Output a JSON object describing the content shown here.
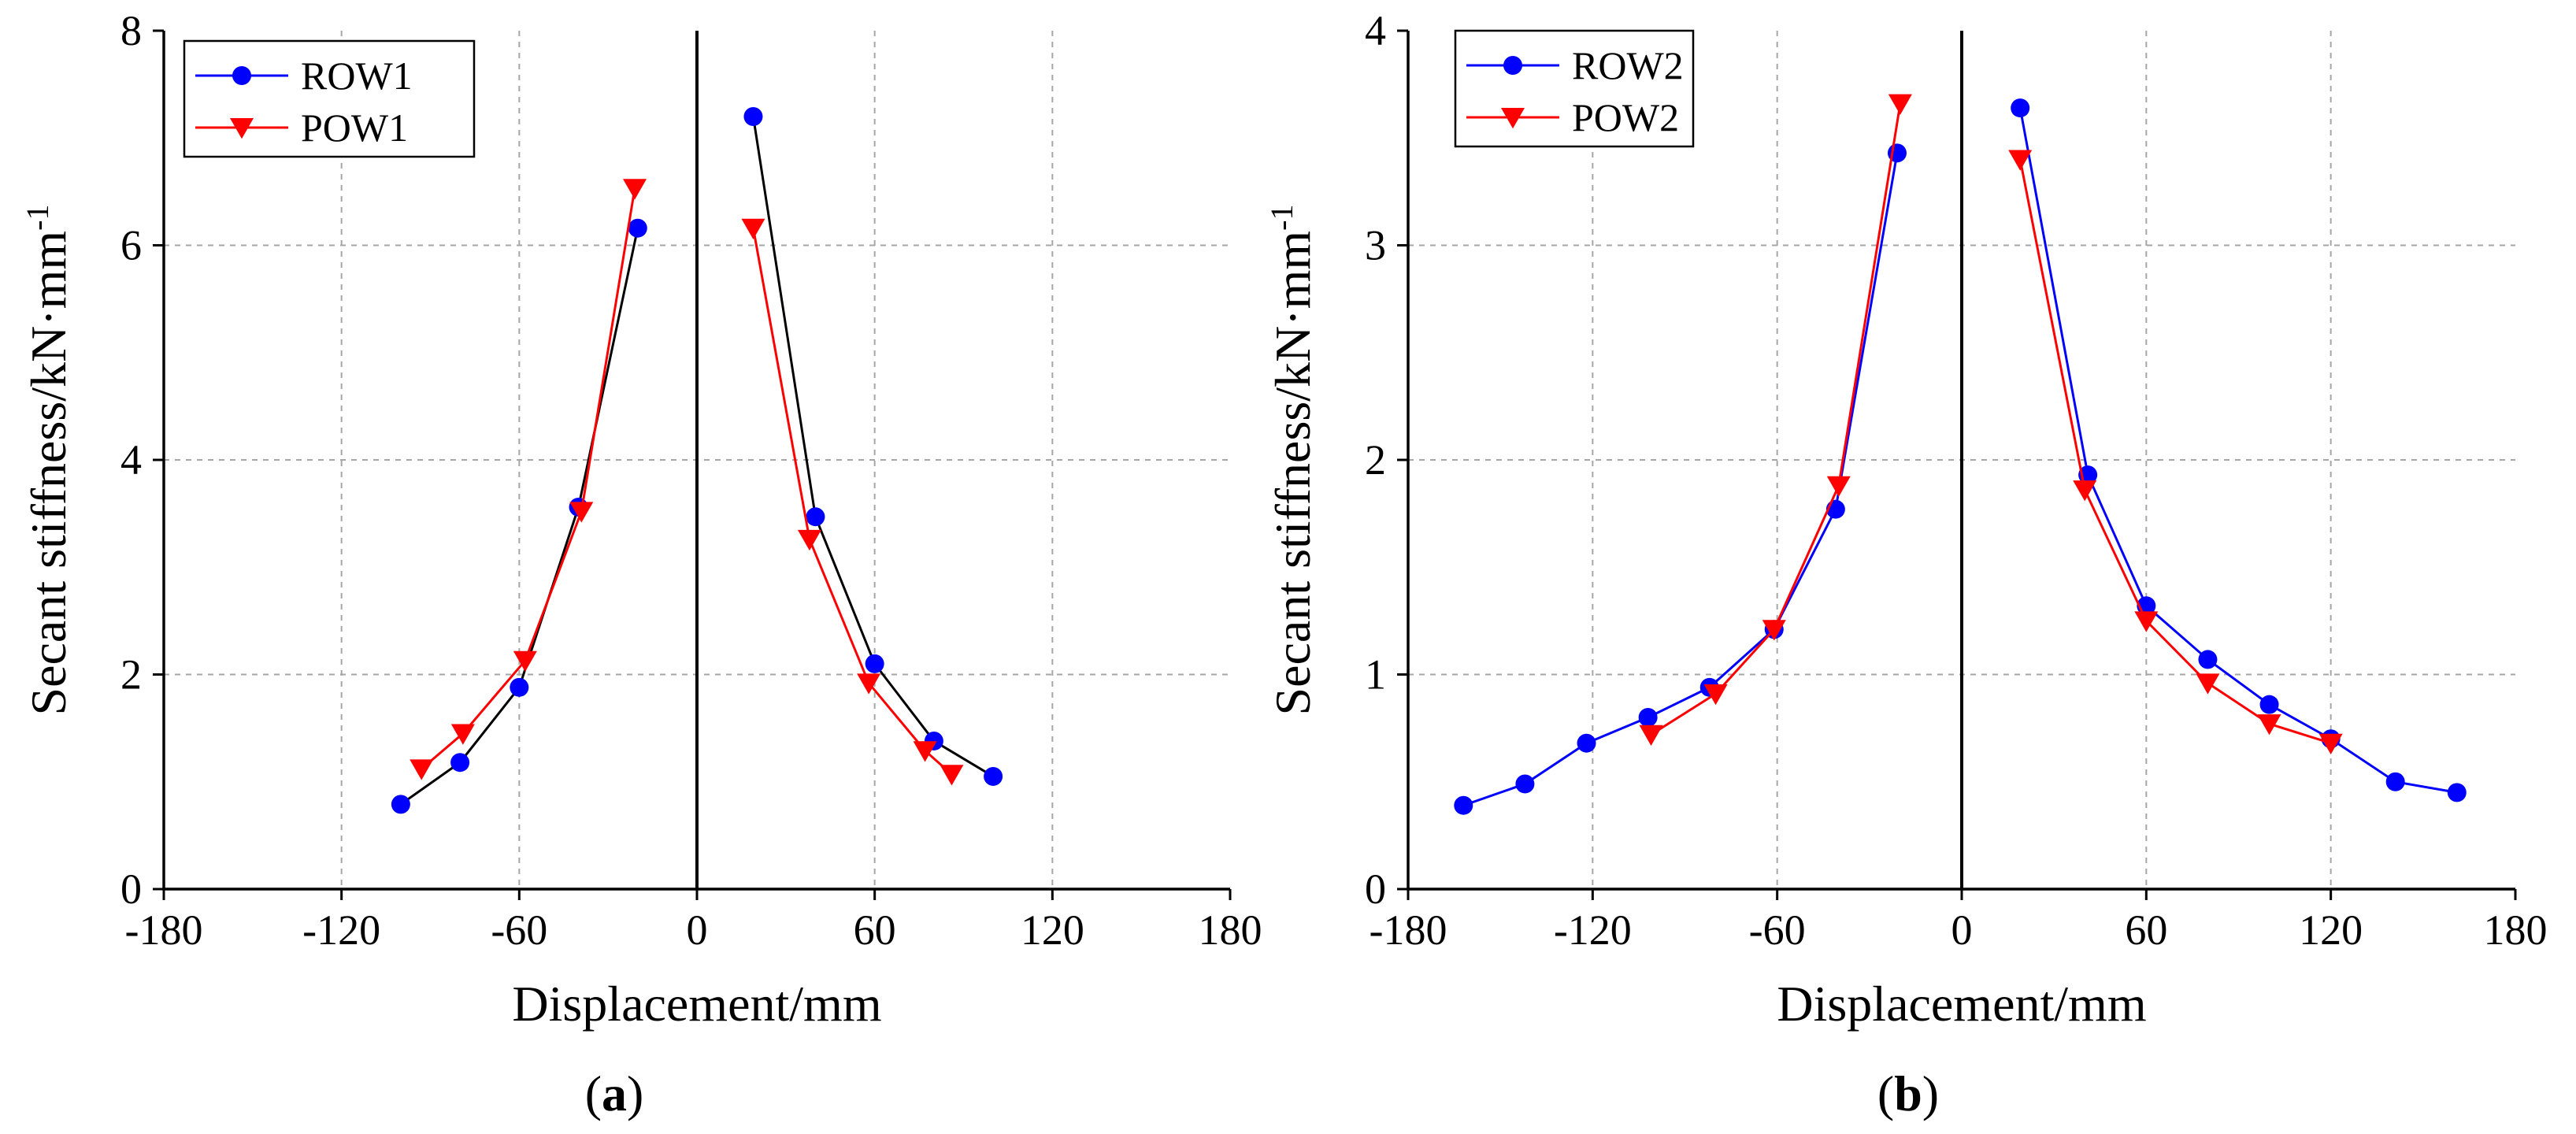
{
  "chart_data": [
    {
      "type": "line",
      "panel_label": "a",
      "xlabel": "Displacement/mm",
      "ylabel": "Secant stiffness/kN·mm",
      "ylabel_sup": "-1",
      "xlim": [
        -180,
        180
      ],
      "ylim": [
        0,
        8
      ],
      "xticks": [
        -180,
        -120,
        -60,
        0,
        60,
        120,
        180
      ],
      "xtick_labels": [
        "-180",
        "-120",
        "-60",
        "0",
        "60",
        "120",
        "180"
      ],
      "yticks": [
        0,
        2,
        4,
        6,
        8
      ],
      "ytick_labels": [
        "0",
        "2",
        "4",
        "6",
        "8"
      ],
      "grid": true,
      "legend_position": "top-left",
      "series": [
        {
          "name": "ROW1",
          "color": "#0000ff",
          "line_color": "#000000",
          "marker": "circle",
          "segments": [
            [
              [
                -100,
                0.79
              ],
              [
                -80,
                1.18
              ],
              [
                -60,
                1.88
              ],
              [
                -40,
                3.56
              ],
              [
                -20,
                6.16
              ]
            ],
            [
              [
                19,
                7.2
              ],
              [
                40,
                3.47
              ],
              [
                60,
                2.1
              ],
              [
                80,
                1.38
              ],
              [
                100,
                1.05
              ]
            ]
          ]
        },
        {
          "name": "POW1",
          "color": "#ff0000",
          "line_color": "#ff0000",
          "marker": "triangle-down",
          "segments": [
            [
              [
                -93,
                1.12
              ],
              [
                -79,
                1.45
              ],
              [
                -58,
                2.13
              ],
              [
                -39,
                3.52
              ],
              [
                -21,
                6.53
              ]
            ],
            [
              [
                19,
                6.16
              ],
              [
                38,
                3.26
              ],
              [
                58,
                1.92
              ],
              [
                77,
                1.29
              ],
              [
                86,
                1.07
              ]
            ]
          ]
        }
      ]
    },
    {
      "type": "line",
      "panel_label": "b",
      "xlabel": "Displacement/mm",
      "ylabel": "Secant stiffness/kN·mm",
      "ylabel_sup": "-1",
      "xlim": [
        -180,
        180
      ],
      "ylim": [
        0,
        4
      ],
      "xticks": [
        -180,
        -120,
        -60,
        0,
        60,
        120,
        180
      ],
      "xtick_labels": [
        "-180",
        "-120",
        "-60",
        "0",
        "60",
        "120",
        "180"
      ],
      "yticks": [
        0,
        1,
        2,
        3,
        4
      ],
      "ytick_labels": [
        "0",
        "1",
        "2",
        "3",
        "4"
      ],
      "grid": true,
      "legend_position": "top-left",
      "series": [
        {
          "name": "ROW2",
          "color": "#0000ff",
          "line_color": "#0000ff",
          "marker": "circle",
          "segments": [
            [
              [
                -162,
                0.39
              ],
              [
                -142,
                0.49
              ],
              [
                -122,
                0.68
              ],
              [
                -102,
                0.8
              ],
              [
                -82,
                0.94
              ],
              [
                -61,
                1.21
              ],
              [
                -41,
                1.77
              ],
              [
                -21,
                3.43
              ]
            ],
            [
              [
                19,
                3.64
              ],
              [
                41,
                1.93
              ],
              [
                60,
                1.32
              ],
              [
                80,
                1.07
              ],
              [
                100,
                0.86
              ],
              [
                120,
                0.7
              ],
              [
                141,
                0.5
              ],
              [
                161,
                0.45
              ]
            ]
          ]
        },
        {
          "name": "POW2",
          "color": "#ff0000",
          "line_color": "#ff0000",
          "marker": "triangle-down",
          "segments": [
            [
              [
                -101,
                0.72
              ],
              [
                -80,
                0.91
              ],
              [
                -61,
                1.21
              ],
              [
                -40,
                1.88
              ],
              [
                -20,
                3.66
              ]
            ],
            [
              [
                19,
                3.4
              ],
              [
                40,
                1.86
              ],
              [
                60,
                1.25
              ],
              [
                80,
                0.96
              ],
              [
                100,
                0.77
              ],
              [
                120,
                0.68
              ]
            ]
          ]
        }
      ]
    }
  ]
}
